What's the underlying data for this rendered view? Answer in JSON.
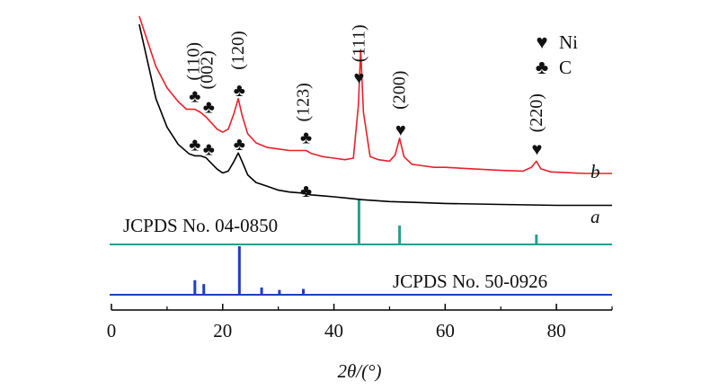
{
  "chart_data": {
    "type": "line",
    "xlabel": "2θ/(°)",
    "xlim": [
      0,
      90
    ],
    "x_ticks": [
      "0",
      "20",
      "40",
      "60",
      "80"
    ],
    "x_tick_values": [
      0,
      20,
      40,
      60,
      80
    ],
    "legend": [
      {
        "symbol": "♥",
        "label": "Ni"
      },
      {
        "symbol": "♣",
        "label": "C"
      }
    ],
    "series": [
      {
        "name": "a",
        "color": "#000000",
        "x": [
          5,
          8,
          10,
          12,
          14,
          15,
          16,
          17,
          18,
          19,
          20,
          21,
          22,
          22.8,
          23.5,
          24.5,
          26,
          28,
          30,
          32,
          34,
          35,
          36,
          38,
          40,
          45,
          50,
          55,
          60,
          70,
          80,
          90
        ],
        "y": [
          0.99,
          0.6,
          0.45,
          0.36,
          0.31,
          0.3,
          0.3,
          0.29,
          0.26,
          0.23,
          0.21,
          0.22,
          0.27,
          0.315,
          0.27,
          0.2,
          0.16,
          0.14,
          0.12,
          0.11,
          0.105,
          0.1,
          0.095,
          0.09,
          0.085,
          0.07,
          0.06,
          0.055,
          0.05,
          0.045,
          0.04,
          0.04
        ]
      },
      {
        "name": "b",
        "color": "#e8202a",
        "x": [
          5,
          8,
          10,
          12,
          13.5,
          15,
          16,
          17,
          18,
          19,
          20,
          21,
          22,
          22.8,
          23.5,
          24.5,
          26,
          28,
          30,
          32,
          34,
          35,
          36,
          38,
          40,
          42,
          43.5,
          44.4,
          44.8,
          45.3,
          46.5,
          48,
          50,
          51,
          51.8,
          52.6,
          54,
          56,
          58,
          60,
          65,
          70,
          74,
          75.5,
          76.4,
          77.2,
          79,
          85,
          90
        ],
        "y": [
          1.13,
          0.8,
          0.66,
          0.57,
          0.52,
          0.52,
          0.5,
          0.47,
          0.43,
          0.39,
          0.37,
          0.39,
          0.49,
          0.59,
          0.48,
          0.36,
          0.3,
          0.27,
          0.26,
          0.25,
          0.25,
          0.25,
          0.23,
          0.21,
          0.2,
          0.19,
          0.2,
          0.55,
          0.91,
          0.5,
          0.21,
          0.19,
          0.18,
          0.22,
          0.33,
          0.21,
          0.16,
          0.15,
          0.14,
          0.14,
          0.13,
          0.12,
          0.115,
          0.14,
          0.18,
          0.13,
          0.11,
          0.1,
          0.1
        ]
      }
    ],
    "curve_labels": [
      "a",
      "b"
    ],
    "peak_labels": [
      {
        "x": 14.8,
        "label": "(110)"
      },
      {
        "x": 17.2,
        "label": "(002)"
      },
      {
        "x": 22.8,
        "label": "(120)"
      },
      {
        "x": 34.5,
        "label": "(123)"
      },
      {
        "x": 44.5,
        "label": "(111)"
      },
      {
        "x": 51.8,
        "label": "(200)"
      },
      {
        "x": 76.4,
        "label": "(220)"
      }
    ],
    "markers": [
      {
        "x": 15,
        "curve": "b",
        "symbol": "♣"
      },
      {
        "x": 17.5,
        "curve": "b",
        "symbol": "♣"
      },
      {
        "x": 23,
        "curve": "b",
        "symbol": "♣"
      },
      {
        "x": 35,
        "curve": "b",
        "symbol": "♣"
      },
      {
        "x": 44.5,
        "curve": "b",
        "symbol": "♥"
      },
      {
        "x": 52,
        "curve": "b",
        "symbol": "♥"
      },
      {
        "x": 76.5,
        "curve": "b",
        "symbol": "♥"
      },
      {
        "x": 15,
        "curve": "a",
        "symbol": "♣"
      },
      {
        "x": 17.5,
        "curve": "a",
        "symbol": "♣"
      },
      {
        "x": 23,
        "curve": "a",
        "symbol": "♣"
      },
      {
        "x": 35,
        "curve": "a",
        "symbol": "♣"
      }
    ],
    "references": [
      {
        "label": "JCPDS No. 04-0850",
        "color": "#2a9d8f",
        "peaks": [
          {
            "x": 44.5,
            "intensity": 1.0
          },
          {
            "x": 51.8,
            "intensity": 0.42
          },
          {
            "x": 76.4,
            "intensity": 0.22
          }
        ]
      },
      {
        "label": "JCPDS No. 50-0926",
        "color": "#1f3fbf",
        "peaks": [
          {
            "x": 15,
            "intensity": 0.3
          },
          {
            "x": 16.6,
            "intensity": 0.22
          },
          {
            "x": 23,
            "intensity": 1.0
          },
          {
            "x": 27,
            "intensity": 0.15
          },
          {
            "x": 30.2,
            "intensity": 0.1
          },
          {
            "x": 34.5,
            "intensity": 0.12
          }
        ]
      }
    ]
  }
}
